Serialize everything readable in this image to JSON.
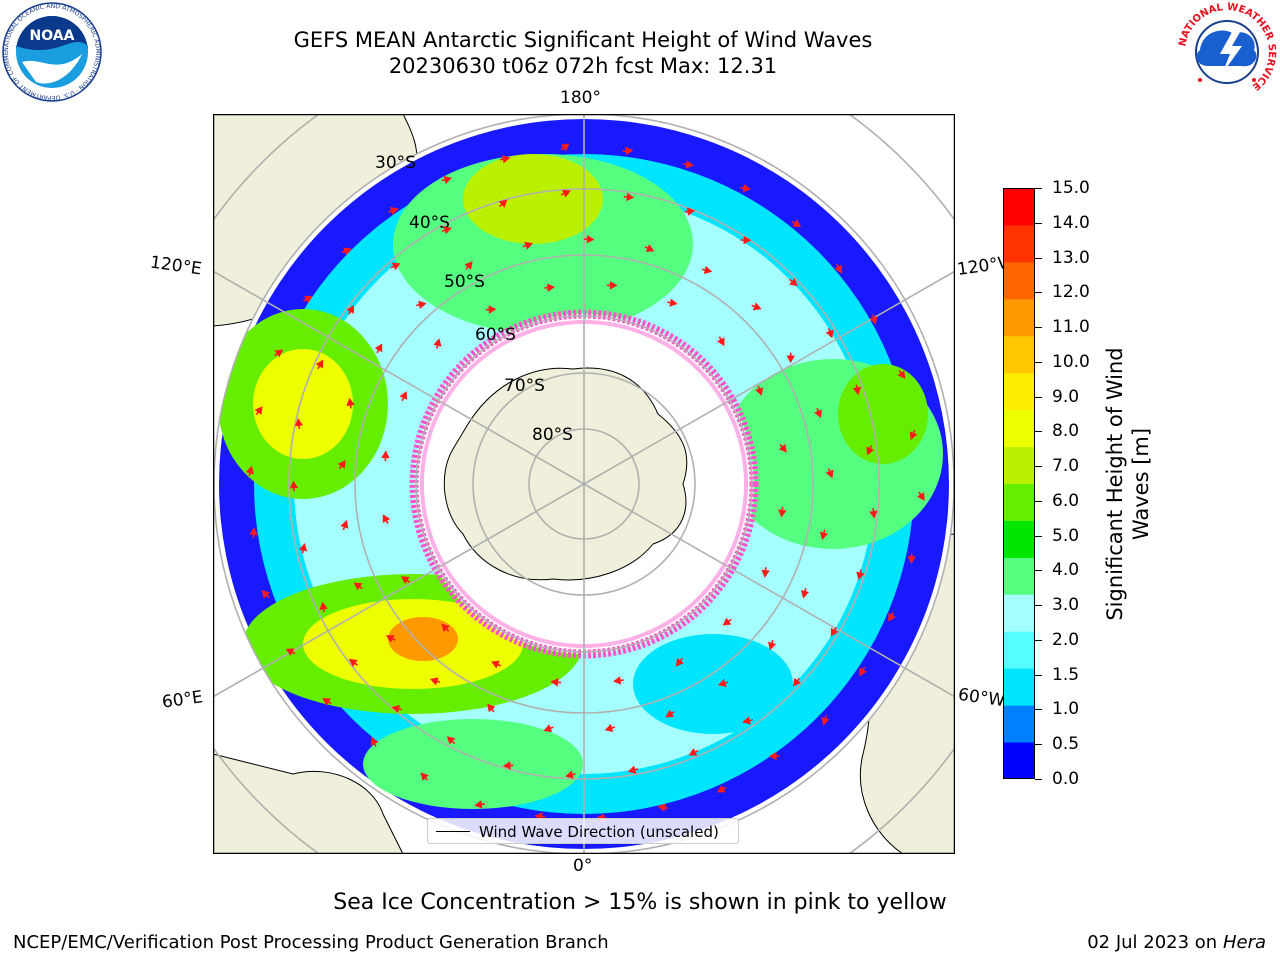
{
  "header": {
    "title_line1": "GEFS MEAN Antarctic Significant Height of Wind Waves",
    "title_line2": "20230630 t06z 072h fcst   Max: 12.31"
  },
  "logos": {
    "left": {
      "icon": "noaa-logo",
      "text": "NOAA",
      "ring_text": "NATIONAL OCEANIC AND ATMOSPHERIC ADMINISTRATION · U.S. DEPARTMENT OF COMMERCE"
    },
    "right": {
      "icon": "nws-logo",
      "ring_text": "NATIONAL WEATHER SERVICE"
    }
  },
  "map": {
    "projection": "south polar stereographic",
    "longitude_labels": {
      "top": "180°",
      "bottom": "0°",
      "left_upper": "120°E",
      "right_upper": "120°W",
      "left_lower": "60°E",
      "right_lower": "60°W"
    },
    "latitude_labels": [
      "30°S",
      "40°S",
      "50°S",
      "60°S",
      "70°S",
      "80°S"
    ],
    "colors": {
      "land": "#efefdb",
      "grid": "#b0b0b0",
      "arrow": "#ff1a1a",
      "ice_edge": "#ff55cc"
    }
  },
  "colorbar": {
    "label": "Significant Height of Wind Waves [m]",
    "ticks": [
      "15.0",
      "14.0",
      "13.0",
      "12.0",
      "11.0",
      "10.0",
      "9.0",
      "8.0",
      "7.0",
      "6.0",
      "5.0",
      "4.0",
      "3.0",
      "2.0",
      "1.5",
      "1.0",
      "0.5",
      "0.0"
    ],
    "colors_bottom_to_top": [
      "#0000ff",
      "#0080ff",
      "#00e5ff",
      "#55ffff",
      "#a6ffff",
      "#55ff80",
      "#00e600",
      "#66ee00",
      "#bbf000",
      "#eeff00",
      "#ffee00",
      "#ffc800",
      "#ff9900",
      "#ff6600",
      "#ff3300",
      "#ff0000"
    ]
  },
  "legend": {
    "label": "Wind Wave Direction (unscaled)"
  },
  "footer": {
    "note": "Sea Ice Concentration > 15% is shown in pink to yellow",
    "credit": "NCEP/EMC/Verification Post Processing Product Generation Branch",
    "date": "02 Jul 2023 on",
    "machine": "Hera"
  }
}
